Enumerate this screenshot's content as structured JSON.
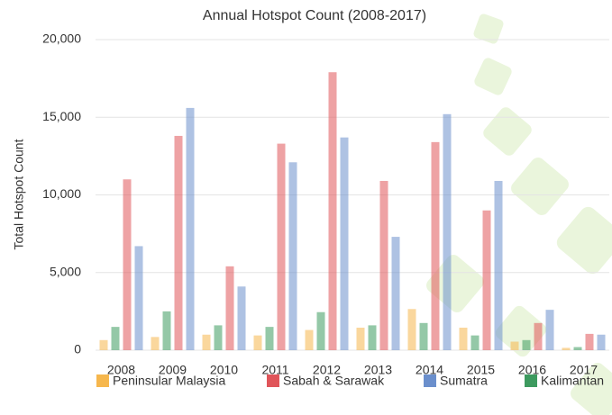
{
  "chart_data": {
    "type": "bar",
    "title": "Annual Hotspot Count (2008-2017)",
    "y_label": "Total Hotspot Count",
    "categories": [
      "2008",
      "2009",
      "2010",
      "2011",
      "2012",
      "2013",
      "2014",
      "2015",
      "2016",
      "2017"
    ],
    "series": [
      {
        "name": "Peninsular Malaysia",
        "color": "#f6b74d",
        "values": [
          650,
          850,
          1000,
          950,
          1300,
          1450,
          2650,
          1450,
          550,
          150
        ]
      },
      {
        "name": "Sabah & Sarawak",
        "color": "#e0555a",
        "values": [
          11000,
          13800,
          5400,
          13300,
          17900,
          10900,
          13400,
          9000,
          1750,
          1050
        ]
      },
      {
        "name": "Sumatra",
        "color": "#6b8fcc",
        "values": [
          6700,
          15600,
          4100,
          12100,
          13700,
          7300,
          15200,
          10900,
          2600,
          1000
        ]
      },
      {
        "name": "Kalimantan",
        "color": "#3d9a5f",
        "values": [
          1500,
          2500,
          1600,
          1500,
          2450,
          1600,
          1750,
          950,
          650,
          200
        ]
      }
    ],
    "ylim": [
      0,
      20000
    ],
    "yticks": [
      0,
      {
        "value": 5000,
        "label": "5,000"
      },
      {
        "value": 10000,
        "label": "10,000"
      },
      {
        "value": 15000,
        "label": "15,000"
      },
      {
        "value": 20000,
        "label": "20,000"
      }
    ],
    "grid": true
  }
}
